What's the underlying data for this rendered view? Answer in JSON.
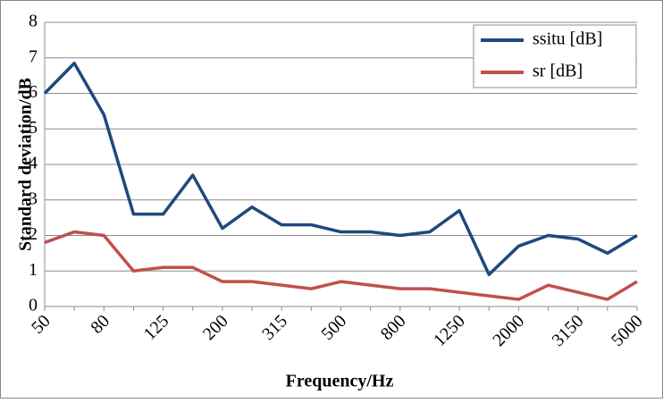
{
  "chart_data": {
    "type": "line",
    "x_label": "Frequency/Hz",
    "y_label": "Standard deviation/dB",
    "categories": [
      "50",
      null,
      "80",
      null,
      "125",
      null,
      "200",
      null,
      "315",
      null,
      "500",
      null,
      "800",
      null,
      "1250",
      null,
      "2000",
      null,
      "3150",
      null,
      "5000"
    ],
    "series": [
      {
        "name": "ssitu [dB]",
        "color": "#1f497d",
        "values": [
          6.0,
          6.85,
          5.4,
          2.6,
          2.6,
          3.7,
          2.2,
          2.8,
          2.3,
          2.3,
          2.1,
          2.1,
          2.0,
          2.1,
          2.7,
          0.9,
          1.7,
          2.0,
          1.9,
          1.5,
          2.0
        ]
      },
      {
        "name": "sr [dB]",
        "color": "#c0504d",
        "values": [
          1.8,
          2.1,
          2.0,
          1.0,
          1.1,
          1.1,
          0.7,
          0.7,
          0.6,
          0.5,
          0.7,
          0.6,
          0.5,
          0.5,
          0.4,
          0.3,
          0.2,
          0.6,
          0.4,
          0.2,
          0.7
        ]
      }
    ],
    "ylim": [
      0,
      8
    ],
    "yticks": [
      0,
      1,
      2,
      3,
      4,
      5,
      6,
      7,
      8
    ],
    "grid": true,
    "legend": "top-right"
  }
}
